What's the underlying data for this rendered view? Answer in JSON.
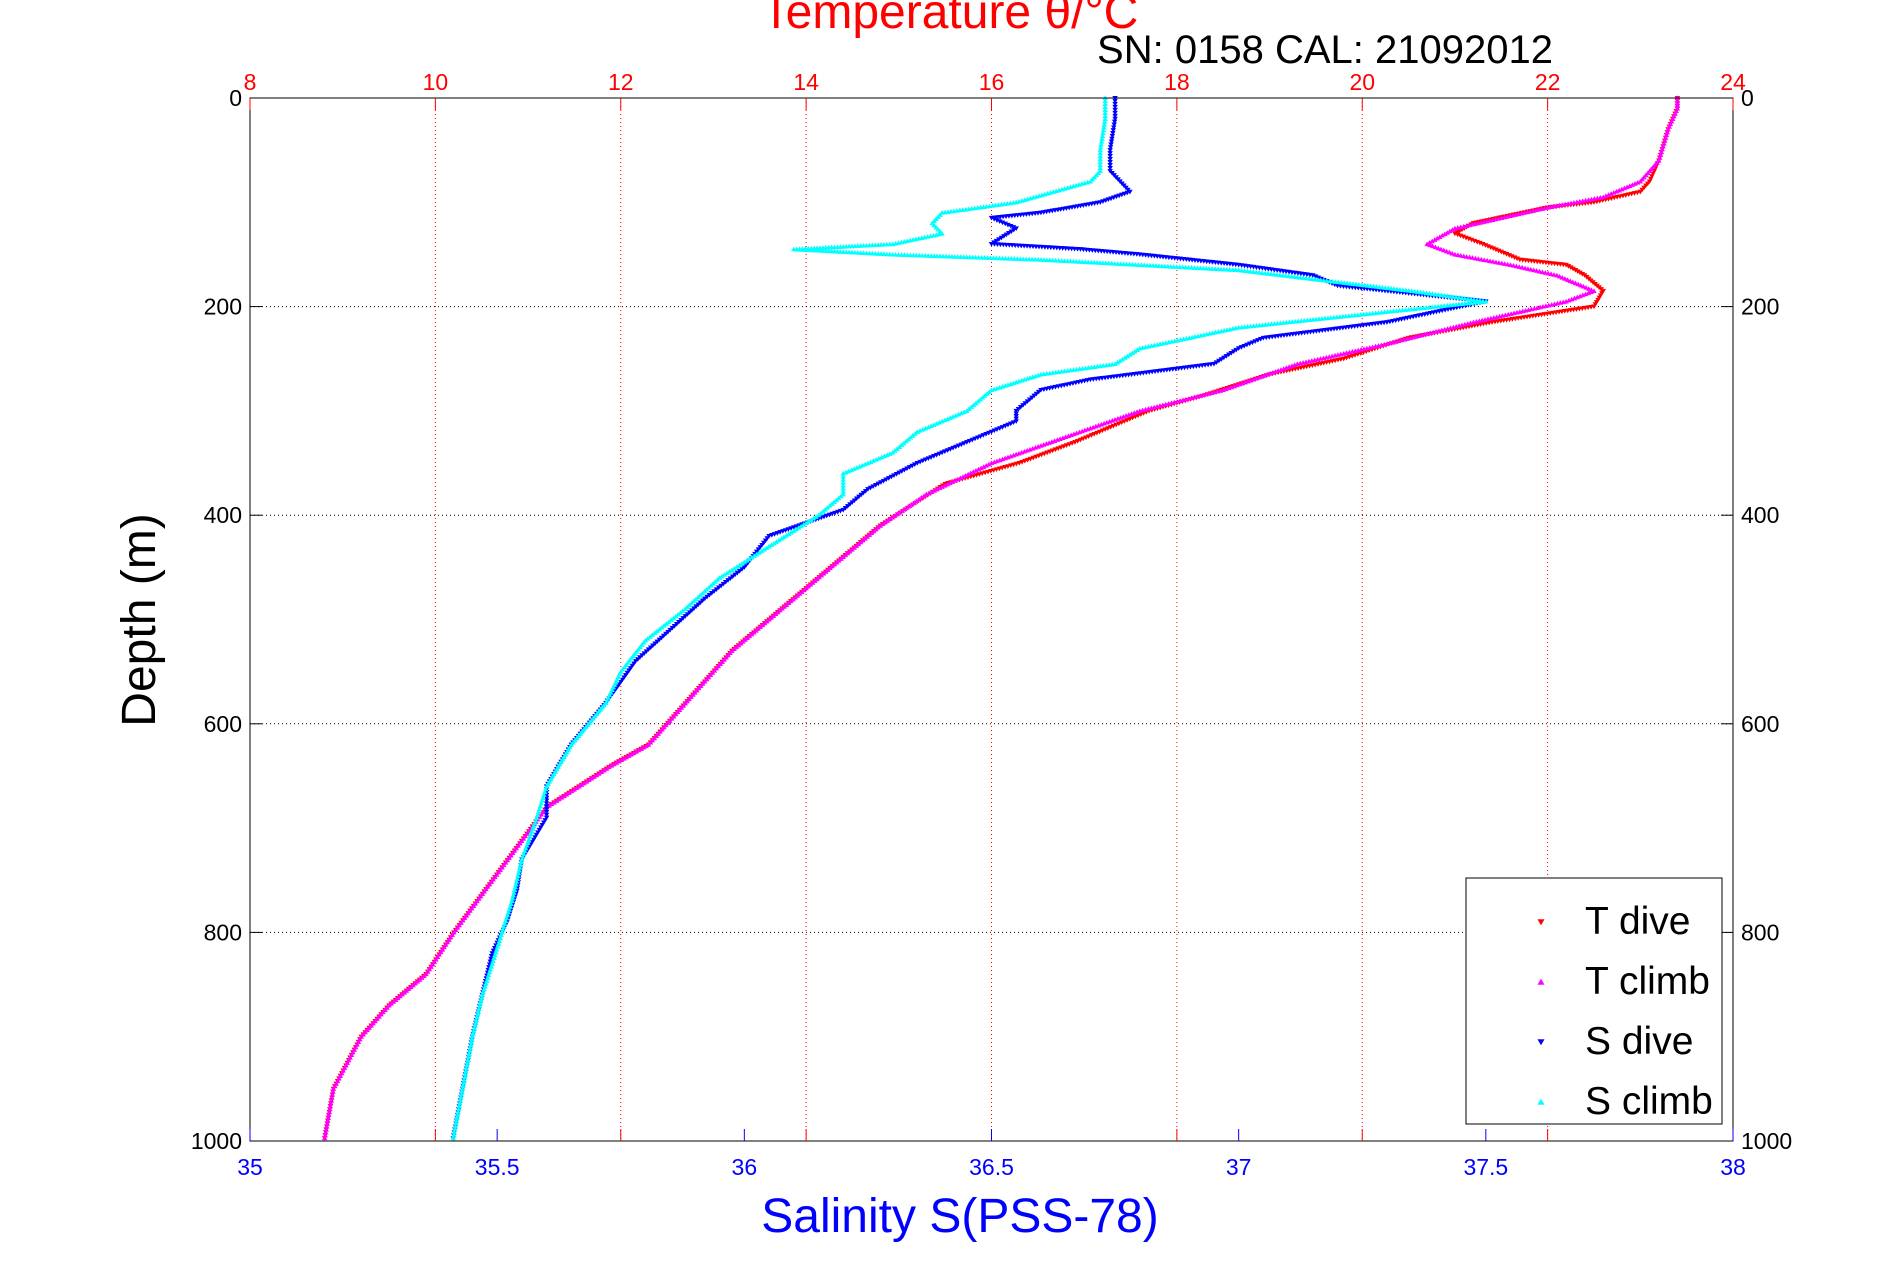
{
  "chart_data": {
    "type": "scatter",
    "title": "Temperature θ/°C",
    "annotation": "SN: 0158  CAL: 21092012",
    "xlabel_bottom": "Salinity S(PSS-78)",
    "xlabel_top": "Temperature θ/°C",
    "ylabel": "Depth (m)",
    "x_bottom_range": [
      35,
      38
    ],
    "x_top_range": [
      8,
      24
    ],
    "y_range": [
      0,
      1000
    ],
    "y_reversed": true,
    "x_bottom_ticks": [
      "35",
      "35.5",
      "36",
      "36.5",
      "37",
      "37.5",
      "38"
    ],
    "x_top_ticks": [
      "8",
      "10",
      "12",
      "14",
      "16",
      "18",
      "20",
      "22",
      "24"
    ],
    "y_ticks": [
      "0",
      "200",
      "400",
      "600",
      "800",
      "1000"
    ],
    "grid": true,
    "legend_position": "bottom-right",
    "colors": {
      "T_dive": "#ff0000",
      "T_climb": "#ff00ff",
      "S_dive": "#0000ff",
      "S_climb": "#00ffff",
      "temp_axis": "#ff0000",
      "sal_axis": "#0000ff"
    },
    "series": [
      {
        "name": "T dive",
        "axis": "top",
        "marker": "triangle-down",
        "points": [
          [
            23.4,
            0
          ],
          [
            23.4,
            10
          ],
          [
            23.3,
            30
          ],
          [
            23.2,
            60
          ],
          [
            23.1,
            80
          ],
          [
            23.0,
            90
          ],
          [
            22.5,
            100
          ],
          [
            22.0,
            105
          ],
          [
            21.2,
            120
          ],
          [
            21.0,
            130
          ],
          [
            21.3,
            140
          ],
          [
            21.7,
            155
          ],
          [
            22.2,
            160
          ],
          [
            22.4,
            170
          ],
          [
            22.6,
            185
          ],
          [
            22.5,
            200
          ],
          [
            21.4,
            215
          ],
          [
            20.5,
            230
          ],
          [
            19.8,
            250
          ],
          [
            19.0,
            265
          ],
          [
            18.3,
            285
          ],
          [
            17.7,
            300
          ],
          [
            16.9,
            330
          ],
          [
            16.3,
            350
          ],
          [
            15.5,
            370
          ],
          [
            14.8,
            410
          ],
          [
            14.4,
            440
          ],
          [
            14.0,
            470
          ],
          [
            13.6,
            500
          ],
          [
            13.2,
            530
          ],
          [
            12.8,
            570
          ],
          [
            12.3,
            620
          ],
          [
            11.9,
            640
          ],
          [
            11.2,
            680
          ],
          [
            10.7,
            740
          ],
          [
            10.2,
            800
          ],
          [
            9.9,
            840
          ],
          [
            9.5,
            870
          ],
          [
            9.2,
            900
          ],
          [
            8.9,
            950
          ],
          [
            8.8,
            1000
          ]
        ]
      },
      {
        "name": "T climb",
        "axis": "top",
        "marker": "triangle-up",
        "points": [
          [
            23.4,
            0
          ],
          [
            23.4,
            10
          ],
          [
            23.3,
            30
          ],
          [
            23.2,
            60
          ],
          [
            23.0,
            80
          ],
          [
            22.6,
            95
          ],
          [
            22.0,
            105
          ],
          [
            21.5,
            115
          ],
          [
            21.0,
            125
          ],
          [
            20.7,
            140
          ],
          [
            21.0,
            150
          ],
          [
            21.6,
            160
          ],
          [
            22.1,
            170
          ],
          [
            22.5,
            185
          ],
          [
            22.2,
            195
          ],
          [
            21.2,
            215
          ],
          [
            20.3,
            235
          ],
          [
            19.3,
            255
          ],
          [
            18.5,
            280
          ],
          [
            17.6,
            300
          ],
          [
            16.8,
            325
          ],
          [
            16.0,
            350
          ],
          [
            15.3,
            380
          ],
          [
            14.8,
            410
          ],
          [
            14.4,
            440
          ],
          [
            14.0,
            470
          ],
          [
            13.6,
            500
          ],
          [
            13.2,
            530
          ],
          [
            12.8,
            570
          ],
          [
            12.3,
            620
          ],
          [
            11.9,
            640
          ],
          [
            11.2,
            680
          ],
          [
            10.7,
            740
          ],
          [
            10.2,
            800
          ],
          [
            9.9,
            840
          ],
          [
            9.5,
            870
          ],
          [
            9.2,
            900
          ],
          [
            8.9,
            950
          ],
          [
            8.8,
            1000
          ]
        ]
      },
      {
        "name": "S dive",
        "axis": "bottom",
        "marker": "triangle-down",
        "points": [
          [
            36.75,
            0
          ],
          [
            36.75,
            20
          ],
          [
            36.74,
            50
          ],
          [
            36.74,
            70
          ],
          [
            36.78,
            90
          ],
          [
            36.72,
            100
          ],
          [
            36.6,
            110
          ],
          [
            36.5,
            115
          ],
          [
            36.55,
            125
          ],
          [
            36.5,
            140
          ],
          [
            36.68,
            145
          ],
          [
            36.8,
            150
          ],
          [
            37.0,
            160
          ],
          [
            37.15,
            170
          ],
          [
            37.2,
            180
          ],
          [
            37.5,
            195
          ],
          [
            37.3,
            215
          ],
          [
            37.05,
            230
          ],
          [
            37.0,
            240
          ],
          [
            36.95,
            255
          ],
          [
            36.7,
            270
          ],
          [
            36.6,
            280
          ],
          [
            36.55,
            300
          ],
          [
            36.55,
            310
          ],
          [
            36.45,
            330
          ],
          [
            36.35,
            350
          ],
          [
            36.25,
            375
          ],
          [
            36.2,
            395
          ],
          [
            36.05,
            420
          ],
          [
            36.0,
            450
          ],
          [
            35.92,
            480
          ],
          [
            35.85,
            510
          ],
          [
            35.78,
            540
          ],
          [
            35.72,
            580
          ],
          [
            35.65,
            620
          ],
          [
            35.6,
            660
          ],
          [
            35.6,
            690
          ],
          [
            35.55,
            730
          ],
          [
            35.54,
            760
          ],
          [
            35.52,
            790
          ],
          [
            35.49,
            820
          ],
          [
            35.47,
            860
          ],
          [
            35.45,
            900
          ],
          [
            35.43,
            950
          ],
          [
            35.41,
            1000
          ]
        ]
      },
      {
        "name": "S climb",
        "axis": "bottom",
        "marker": "triangle-up",
        "points": [
          [
            36.73,
            0
          ],
          [
            36.73,
            20
          ],
          [
            36.72,
            50
          ],
          [
            36.72,
            70
          ],
          [
            36.7,
            80
          ],
          [
            36.55,
            100
          ],
          [
            36.4,
            110
          ],
          [
            36.38,
            120
          ],
          [
            36.4,
            130
          ],
          [
            36.3,
            140
          ],
          [
            36.1,
            145
          ],
          [
            36.3,
            150
          ],
          [
            36.6,
            155
          ],
          [
            37.0,
            165
          ],
          [
            37.35,
            185
          ],
          [
            37.5,
            195
          ],
          [
            37.0,
            220
          ],
          [
            36.8,
            240
          ],
          [
            36.75,
            255
          ],
          [
            36.6,
            265
          ],
          [
            36.5,
            280
          ],
          [
            36.45,
            300
          ],
          [
            36.35,
            320
          ],
          [
            36.3,
            340
          ],
          [
            36.2,
            360
          ],
          [
            36.2,
            380
          ],
          [
            36.15,
            400
          ],
          [
            36.05,
            430
          ],
          [
            35.95,
            460
          ],
          [
            35.88,
            490
          ],
          [
            35.8,
            520
          ],
          [
            35.75,
            550
          ],
          [
            35.72,
            580
          ],
          [
            35.65,
            620
          ],
          [
            35.6,
            660
          ],
          [
            35.58,
            690
          ],
          [
            35.55,
            730
          ],
          [
            35.53,
            770
          ],
          [
            35.51,
            800
          ],
          [
            35.49,
            830
          ],
          [
            35.47,
            860
          ],
          [
            35.45,
            900
          ],
          [
            35.43,
            950
          ],
          [
            35.41,
            1000
          ]
        ]
      }
    ],
    "legend": [
      "T dive",
      "T climb",
      "S dive",
      "S climb"
    ]
  }
}
